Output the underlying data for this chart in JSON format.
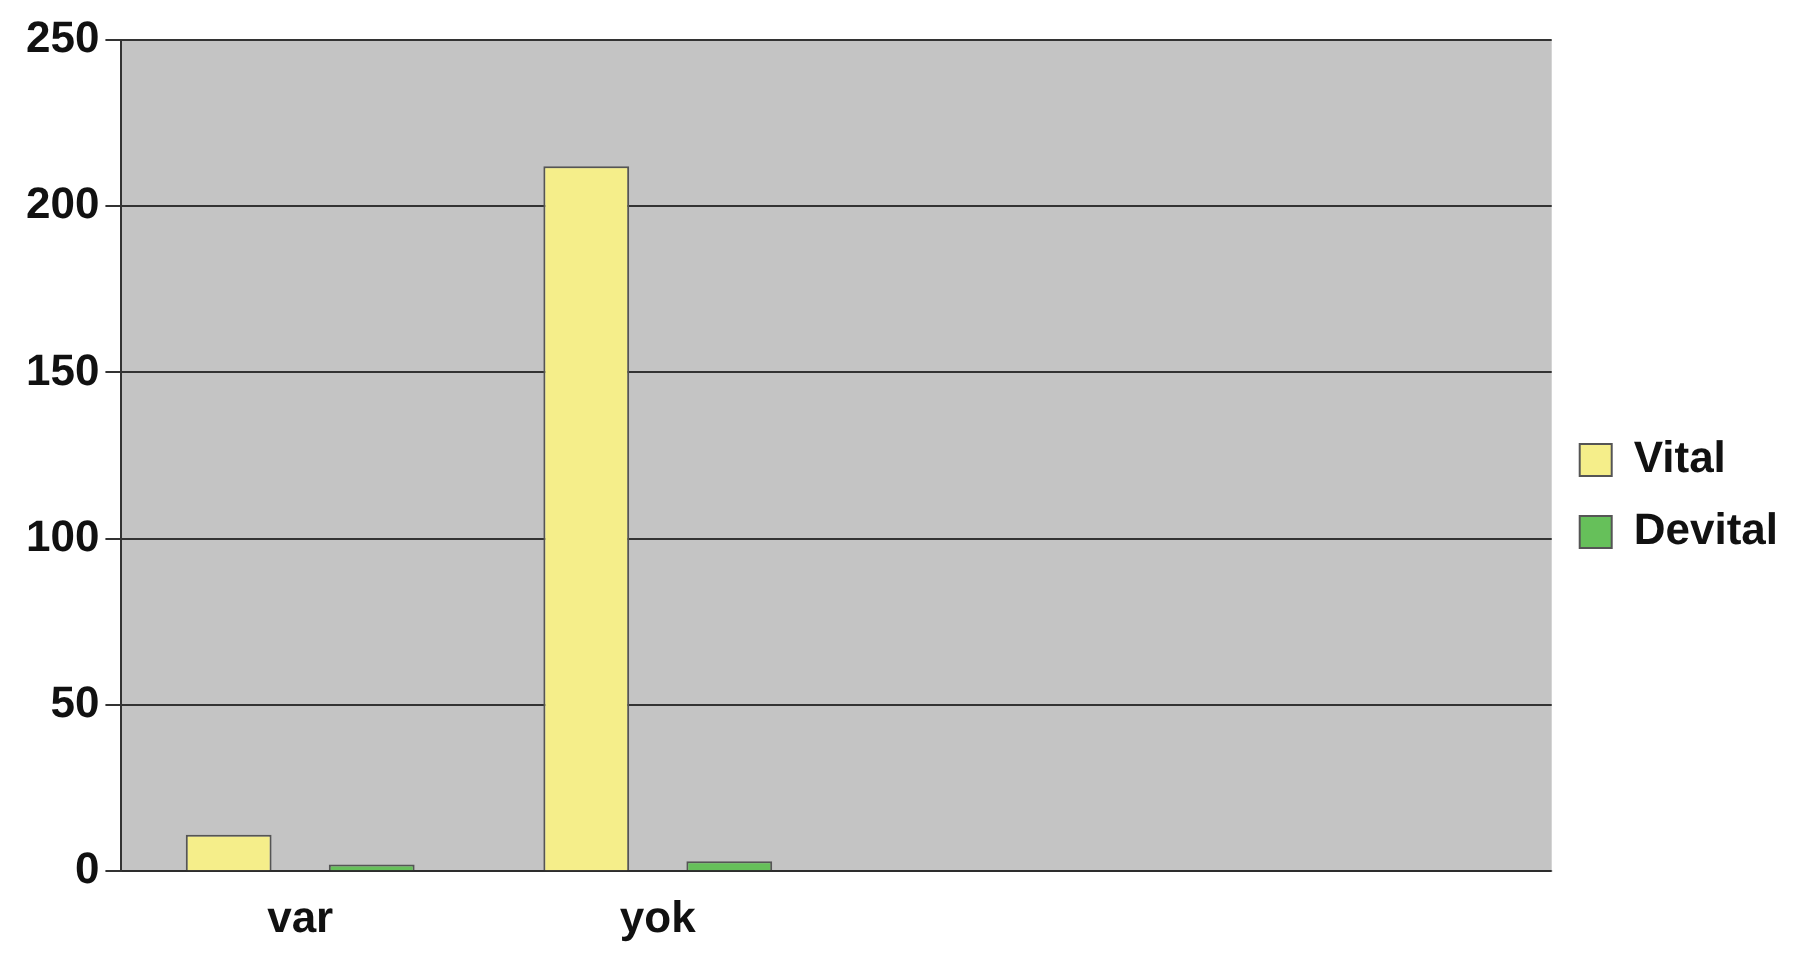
{
  "chart_data": {
    "type": "bar",
    "categories": [
      "var",
      "yok",
      null,
      null
    ],
    "series": [
      {
        "name": "Vital",
        "color": "#f5ee8a",
        "values": [
          11,
          212,
          null,
          null
        ]
      },
      {
        "name": "Devital",
        "color": "#66c05a",
        "values": [
          2,
          3,
          null,
          null
        ]
      }
    ],
    "ylim": [
      0,
      250
    ],
    "yticks": [
      0,
      50,
      100,
      150,
      200,
      250
    ],
    "grid": "y",
    "legend": "right"
  }
}
